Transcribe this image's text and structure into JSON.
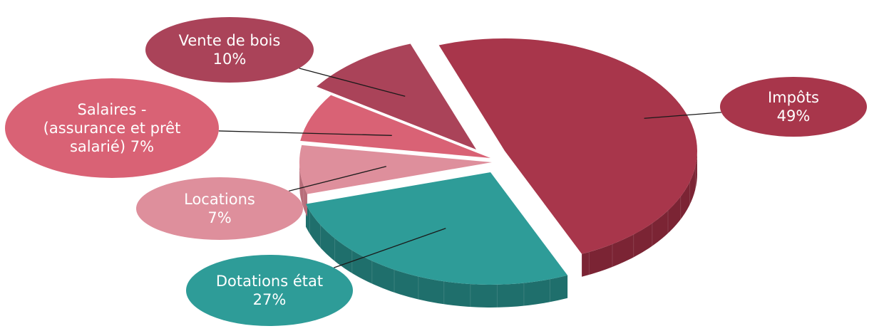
{
  "chart_data": {
    "type": "pie",
    "title": "",
    "slices": [
      {
        "name": "Impôts",
        "value": 49,
        "label_lines": [
          "Impôts",
          "49%"
        ],
        "color": "#A8364B",
        "side_color": "#7B2434",
        "label_color": "#A8364B"
      },
      {
        "name": "Dotations état",
        "value": 27,
        "label_lines": [
          "Dotations état",
          "27%"
        ],
        "color": "#2E9C98",
        "side_color": "#1F6F6C",
        "label_color": "#2E9C98"
      },
      {
        "name": "Locations",
        "value": 7,
        "label_lines": [
          "Locations",
          "7%"
        ],
        "color": "#DE8F9C",
        "side_color": "#B86D7A",
        "label_color": "#DE8F9C"
      },
      {
        "name": "Salaires - (assurance et prêt salarié)",
        "value": 7,
        "label_lines": [
          "Salaires -",
          "(assurance et prêt",
          "salarié) 7%"
        ],
        "color": "#D96275",
        "side_color": "#A9485A",
        "label_color": "#D96275"
      },
      {
        "name": "Vente de bois",
        "value": 10,
        "label_lines": [
          "Vente de bois",
          "10%"
        ],
        "color": "#AA4359",
        "side_color": "#752A3B",
        "label_color": "#AA4359"
      }
    ]
  }
}
